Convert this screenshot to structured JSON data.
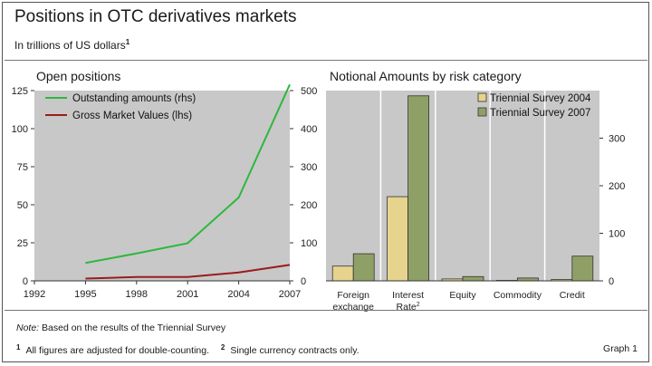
{
  "header": {
    "title": "Positions in OTC derivatives markets",
    "subtitle": "In trillions of US dollars",
    "subtitle_footnote": "1"
  },
  "footer": {
    "note_label": "Note:",
    "note_text": " Based on the results of the Triennial Survey",
    "footnote1_mark": "1",
    "footnote1_text": "All figures are adjusted for double-counting.",
    "footnote2_mark": "2",
    "footnote2_text": "Single currency contracts only.",
    "graph_label": "Graph 1"
  },
  "colors": {
    "outstanding": "#2db83d",
    "gross": "#9b1b1b",
    "bar2004": "#e6d38e",
    "bar2007": "#8fa066",
    "plot_bg": "#c8c8c8"
  },
  "chart_data": [
    {
      "type": "line",
      "title": "Open positions",
      "x": [
        1992,
        1995,
        1998,
        2001,
        2004,
        2007
      ],
      "x_ticks": [
        "1992",
        "1995",
        "1998",
        "2001",
        "2004",
        "2007"
      ],
      "xlim": [
        1992,
        2007
      ],
      "ylim_left": [
        0,
        125
      ],
      "ylim_right": [
        0,
        500
      ],
      "yticks_left": [
        "0",
        "25",
        "50",
        "75",
        "100",
        "125"
      ],
      "yticks_right": [
        "0",
        "100",
        "200",
        "300",
        "400",
        "500"
      ],
      "legend_position": "top-left",
      "series": [
        {
          "name": "Outstanding amounts (rhs)",
          "axis": "right",
          "x": [
            1995,
            1998,
            2001,
            2004,
            2007
          ],
          "values": [
            47,
            72,
            99,
            219,
            516
          ]
        },
        {
          "name": "Gross Market Values (lhs)",
          "axis": "left",
          "x": [
            1995,
            1998,
            2001,
            2004,
            2007
          ],
          "values": [
            1.5,
            2.5,
            2.5,
            5.5,
            10.5
          ]
        }
      ]
    },
    {
      "type": "bar",
      "title": "Notional Amounts by risk category",
      "categories": [
        "Foreign exchange",
        "Interest Rate",
        "Equity",
        "Commodity",
        "Credit"
      ],
      "category_lines": [
        [
          "Foreign",
          "exchange"
        ],
        [
          "Interest",
          "Rate"
        ],
        [
          "Equity"
        ],
        [
          "Commodity"
        ],
        [
          "Credit"
        ]
      ],
      "category_footnote_index": 1,
      "category_footnote": "2",
      "ylim": [
        0,
        400
      ],
      "yticks": [
        "0",
        "100",
        "200",
        "300"
      ],
      "y_axis_side": "right",
      "legend_position": "top-right",
      "series": [
        {
          "name": "Triennial Survey 2004",
          "values": [
            31,
            177,
            4,
            1,
            3
          ]
        },
        {
          "name": "Triennial Survey 2007",
          "values": [
            57,
            389,
            9,
            6,
            52
          ]
        }
      ]
    }
  ]
}
